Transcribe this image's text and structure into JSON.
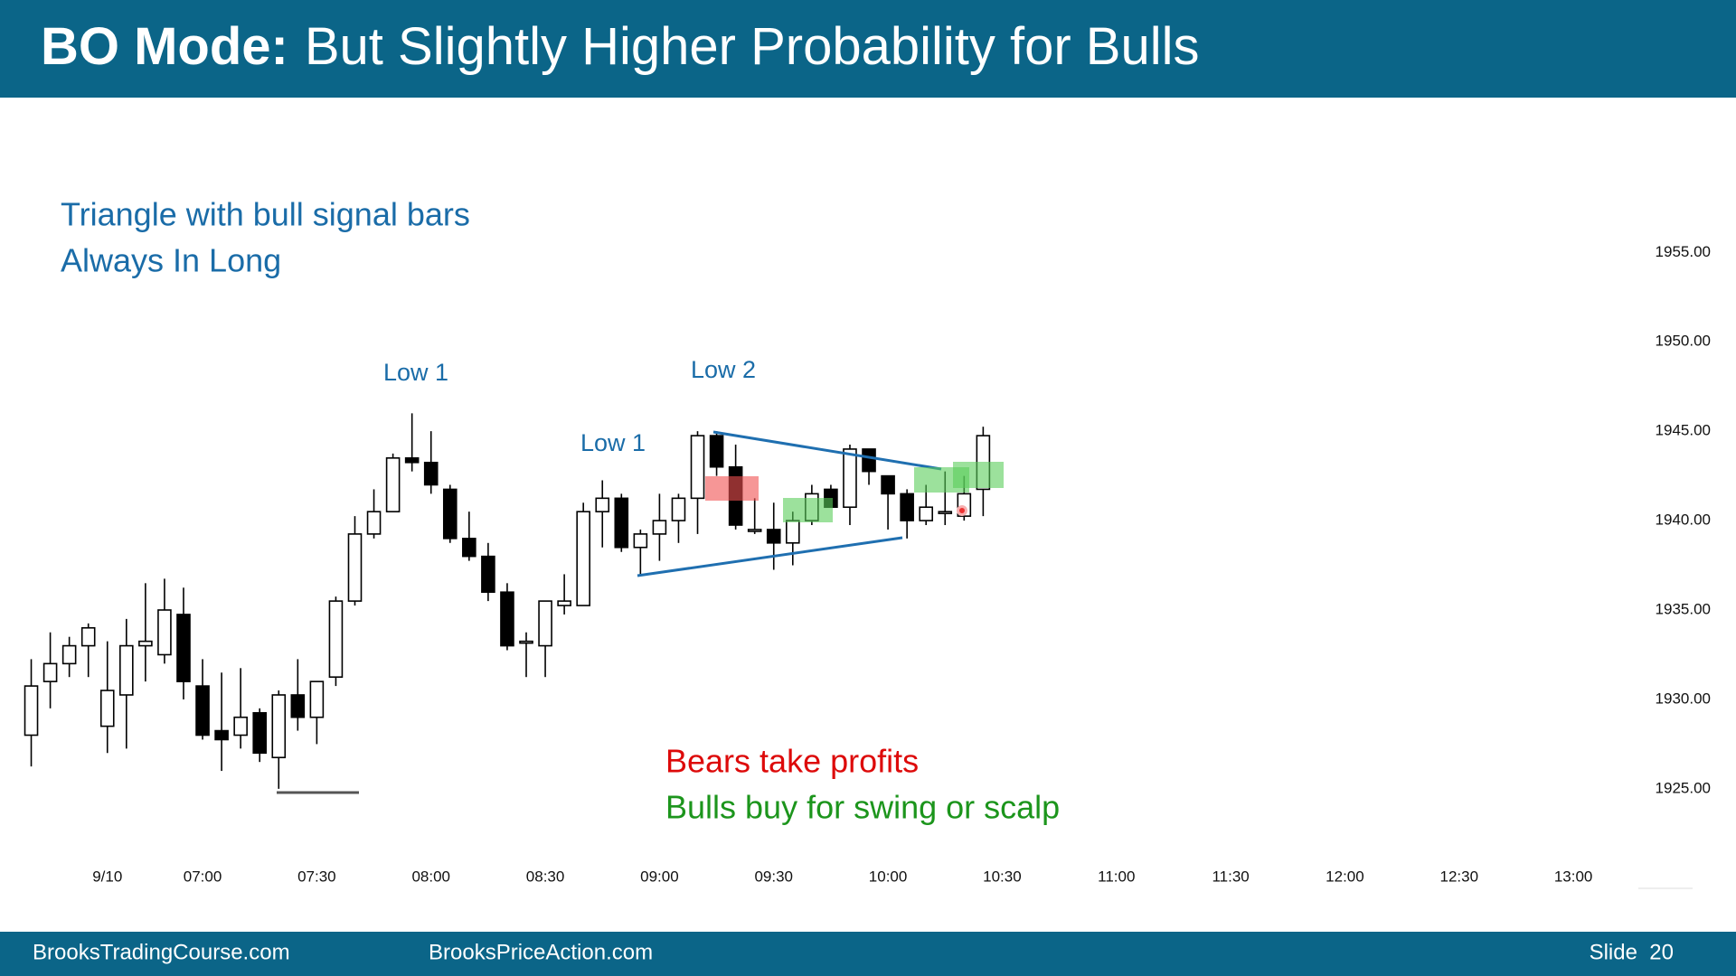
{
  "chart_data": {
    "type": "candlestick",
    "title_bold": "BO Mode:",
    "title": "But Slightly Higher Probability for Bulls",
    "annotations": [
      "Triangle with bull signal bars",
      "Always In Long",
      "Low 1",
      "Low 1",
      "Low 2",
      "Bears take profits",
      "Bulls buy for swing or scalp"
    ],
    "footer": [
      "BrooksTradingCourse.com",
      "BrooksPriceAction.com",
      "Slide  20"
    ],
    "up_color": "#ffffff",
    "down_color": "#000000",
    "categories": [
      null,
      null,
      null,
      null,
      null,
      null,
      null,
      null,
      null,
      null,
      null,
      null,
      null,
      null,
      null,
      null,
      null,
      null,
      null,
      null,
      null,
      null,
      null,
      null,
      null,
      null,
      null,
      null,
      null,
      null,
      null,
      null,
      null,
      null,
      null,
      null,
      null,
      null,
      null,
      null,
      null,
      null,
      null,
      null,
      null,
      null,
      null,
      null,
      null,
      null,
      null
    ],
    "open": [
      1928,
      1931,
      1932,
      1933,
      1928.5,
      1930.25,
      1933,
      1932.5,
      1934.75,
      1930.75,
      1928.25,
      1928,
      1929.25,
      1926.75,
      1930.25,
      1929,
      1931.25,
      1935.5,
      1939.25,
      1940.5,
      1943.5,
      1943.25,
      1941.75,
      1939,
      1938,
      1936,
      1933.25,
      1933,
      1935.25,
      1935.25,
      1940.5,
      1941.25,
      1938.5,
      1939.25,
      1940,
      1941.25,
      1944.75,
      1943,
      1939.5,
      1939.5,
      1938.75,
      1940,
      1941.75,
      1940.75,
      1944,
      1942.5,
      1941.5,
      1940,
      1940.5,
      1940.25,
      1941.75
    ],
    "high": [
      1932.25,
      1933.75,
      1933.5,
      1934.25,
      1933.25,
      1934.5,
      1936.5,
      1936.75,
      1936.25,
      1932.25,
      1931.5,
      1931.75,
      1929.5,
      1930.5,
      1932.25,
      1931,
      1935.75,
      1940.25,
      1941.75,
      1943.75,
      1946,
      1945,
      1942,
      1940.5,
      1938.75,
      1936.5,
      1933.75,
      1935.5,
      1937,
      1941,
      1942.25,
      1941.5,
      1939.5,
      1941.5,
      1941.5,
      1945,
      1945,
      1944.25,
      1941.25,
      1941,
      1940.5,
      1942,
      1942,
      1944.25,
      1944,
      1942.5,
      1941.75,
      1942,
      1942.75,
      1942.5,
      1945.25
    ],
    "low": [
      1926.25,
      1929.5,
      1931.25,
      1931.25,
      1927,
      1927.25,
      1931,
      1932,
      1930,
      1927.75,
      1926,
      1927.25,
      1926.5,
      1925,
      1928.25,
      1927.5,
      1930.75,
      1935.25,
      1939,
      1940.5,
      1942.75,
      1941.5,
      1938.75,
      1937.75,
      1935.5,
      1932.75,
      1931.25,
      1931.25,
      1934.75,
      1935.25,
      1938.5,
      1938.25,
      1937,
      1937.75,
      1938.75,
      1939.25,
      1942.5,
      1939.5,
      1939.25,
      1937.25,
      1937.5,
      1939.75,
      1940.75,
      1939.75,
      1942,
      1939.5,
      1939,
      1939.75,
      1939.75,
      1940,
      1940.25
    ],
    "close": [
      1930.75,
      1932,
      1933,
      1934,
      1930.5,
      1933,
      1933.25,
      1935,
      1931,
      1928,
      1927.75,
      1929,
      1927,
      1930.25,
      1929,
      1931,
      1935.5,
      1939.25,
      1940.5,
      1943.5,
      1943.25,
      1942,
      1939,
      1938,
      1936,
      1933,
      1933.25,
      1935.5,
      1935.5,
      1940.5,
      1941.25,
      1938.5,
      1939.25,
      1940,
      1941.25,
      1944.75,
      1943,
      1939.75,
      1939.5,
      1938.75,
      1940,
      1941.5,
      1940.75,
      1944,
      1942.75,
      1941.5,
      1940,
      1940.75,
      1940.5,
      1941.5,
      1944.75
    ],
    "xlim": [
      -0.5,
      87.5
    ],
    "xticks": [
      {
        "value": 4,
        "label": "9/10"
      },
      {
        "value": 9,
        "label": "07:00"
      },
      {
        "value": 15,
        "label": "07:30"
      },
      {
        "value": 21,
        "label": "08:00"
      },
      {
        "value": 27,
        "label": "08:30"
      },
      {
        "value": 33,
        "label": "09:00"
      },
      {
        "value": 39,
        "label": "09:30"
      },
      {
        "value": 45,
        "label": "10:00"
      },
      {
        "value": 51,
        "label": "10:30"
      },
      {
        "value": 57,
        "label": "11:00"
      },
      {
        "value": 63,
        "label": "11:30"
      },
      {
        "value": 69,
        "label": "12:00"
      },
      {
        "value": 75,
        "label": "12:30"
      },
      {
        "value": 81,
        "label": "13:00"
      }
    ],
    "ylim": [
      1921,
      1963
    ],
    "yticks": [
      {
        "value": 1925,
        "label": "1925.00"
      },
      {
        "value": 1930,
        "label": "1930.00"
      },
      {
        "value": 1935,
        "label": "1935.00"
      },
      {
        "value": 1940,
        "label": "1940.00"
      },
      {
        "value": 1945,
        "label": "1945.00"
      },
      {
        "value": 1950,
        "label": "1950.00"
      },
      {
        "value": 1955,
        "label": "1955.00"
      }
    ]
  }
}
